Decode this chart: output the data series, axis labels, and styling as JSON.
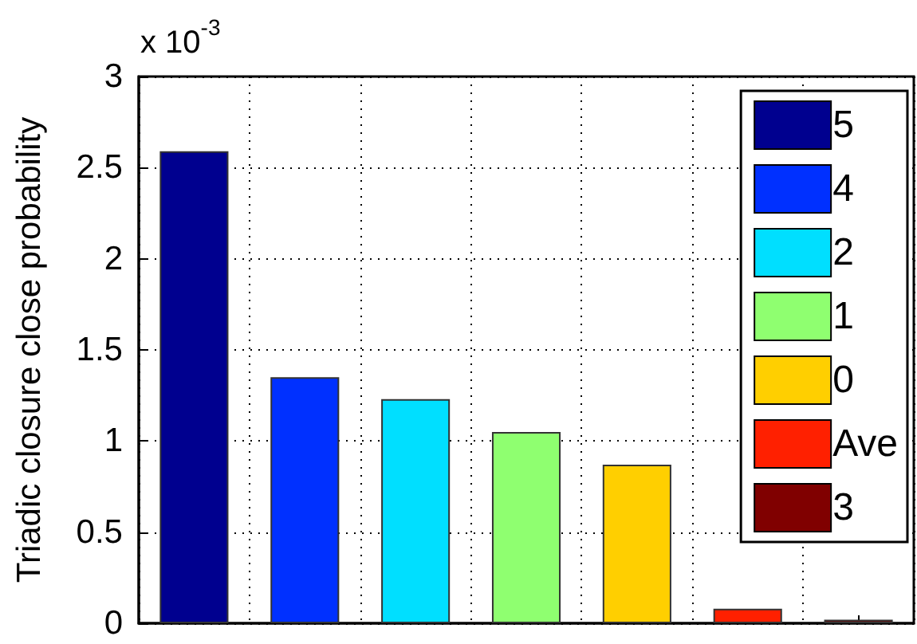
{
  "chart_data": {
    "type": "bar",
    "ylabel": "Triadic closure close probability",
    "annotations": [
      "x 10$^{-3}$"
    ],
    "categories": [
      null,
      null,
      null,
      null,
      null,
      null,
      null
    ],
    "series": [
      {
        "name": "5",
        "color": "#00008f",
        "values": [
          2.59,
          null,
          null,
          null,
          null,
          null,
          null
        ]
      },
      {
        "name": "4",
        "color": "#0030ff",
        "values": [
          null,
          1.35,
          null,
          null,
          null,
          null,
          null
        ]
      },
      {
        "name": "2",
        "color": "#00dfff",
        "values": [
          null,
          null,
          1.23,
          null,
          null,
          null,
          null
        ]
      },
      {
        "name": "1",
        "color": "#8fff70",
        "values": [
          null,
          null,
          null,
          1.05,
          null,
          null,
          null
        ]
      },
      {
        "name": "0",
        "color": "#ffcf00",
        "values": [
          null,
          null,
          null,
          null,
          0.87,
          null,
          null
        ]
      },
      {
        "name": "Ave",
        "color": "#ff2000",
        "values": [
          null,
          null,
          null,
          null,
          null,
          0.08,
          null
        ]
      },
      {
        "name": "3",
        "color": "#800000",
        "values": [
          null,
          null,
          null,
          null,
          null,
          null,
          0.02
        ]
      }
    ],
    "ylim": [
      0,
      3
    ],
    "yticks": [
      0,
      0.5,
      1,
      1.5,
      2,
      2.5,
      3
    ],
    "grid": true,
    "legend": "top right"
  }
}
